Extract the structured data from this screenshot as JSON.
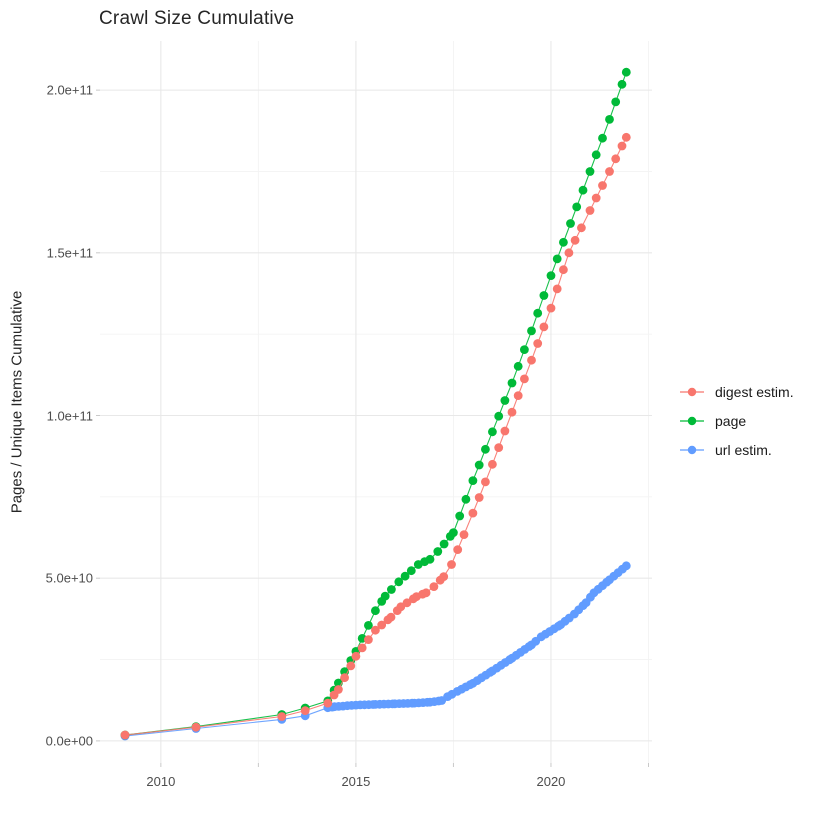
{
  "chart_data": {
    "type": "line",
    "title": "Crawl Size Cumulative",
    "xlabel": "",
    "ylabel": "Pages / Unique Items Cumulative",
    "legend_position": "right-middle",
    "grid": true,
    "background": "#ffffff",
    "grid_major_color": "#e8e8e8",
    "grid_minor_color": "#f3f3f3",
    "tick_color": "#c9c9c9",
    "tick_label_color": "#4d4d4d",
    "x_domain": [
      2008.44,
      2022.59
    ],
    "y_domain": [
      -6800000000,
      215100000000
    ],
    "x_ticks": [
      {
        "value": 2010,
        "label": "2010"
      },
      {
        "value": 2015,
        "label": "2015"
      },
      {
        "value": 2020,
        "label": "2020"
      }
    ],
    "x_minor_ticks": [
      2012.5,
      2017.5,
      2022.5
    ],
    "y_ticks": [
      {
        "value": 0,
        "label": "0.0e+00"
      },
      {
        "value": 50000000000,
        "label": "5.0e+10"
      },
      {
        "value": 100000000000,
        "label": "1.0e+11"
      },
      {
        "value": 150000000000,
        "label": "1.5e+11"
      },
      {
        "value": 200000000000,
        "label": "2.0e+11"
      }
    ],
    "y_minor_ticks": [
      25000000000,
      75000000000,
      125000000000,
      175000000000
    ],
    "value_scale": 1000000000,
    "dense_from_year": 2014.27,
    "series": [
      {
        "name": "digest estim.",
        "color": "#F8766D",
        "dense_step": 0.16,
        "points": [
          [
            2009.08,
            1.8
          ],
          [
            2010.9,
            4.2
          ],
          [
            2013.1,
            7.5
          ],
          [
            2013.7,
            9.3
          ],
          [
            2014.28,
            11.6
          ],
          [
            2014.55,
            15.8
          ],
          [
            2015.0,
            26.0
          ],
          [
            2015.5,
            34.0
          ],
          [
            2015.9,
            38.0
          ],
          [
            2016.15,
            41.2
          ],
          [
            2016.55,
            44.3
          ],
          [
            2016.8,
            45.5
          ],
          [
            2017.0,
            47.4
          ],
          [
            2017.25,
            50.5
          ],
          [
            2017.45,
            54.2
          ],
          [
            2018.0,
            70.0
          ],
          [
            2018.5,
            85.0
          ],
          [
            2019.0,
            101.0
          ],
          [
            2019.5,
            117.0
          ],
          [
            2020.0,
            133.0
          ],
          [
            2020.46,
            150.0
          ],
          [
            2021.0,
            163.0
          ],
          [
            2021.5,
            175.0
          ],
          [
            2021.93,
            185.5
          ]
        ]
      },
      {
        "name": "page",
        "color": "#00BA38",
        "dense_step": 0.16,
        "points": [
          [
            2009.08,
            1.8
          ],
          [
            2010.9,
            4.4
          ],
          [
            2013.1,
            8.1
          ],
          [
            2013.7,
            10.1
          ],
          [
            2014.28,
            12.3
          ],
          [
            2014.55,
            17.8
          ],
          [
            2015.0,
            27.5
          ],
          [
            2015.5,
            40.0
          ],
          [
            2015.75,
            44.5
          ],
          [
            2016.1,
            48.9
          ],
          [
            2016.6,
            54.2
          ],
          [
            2016.9,
            55.8
          ],
          [
            2017.1,
            58.2
          ],
          [
            2017.5,
            64.0
          ],
          [
            2018.0,
            80.0
          ],
          [
            2018.5,
            95.0
          ],
          [
            2019.0,
            110.0
          ],
          [
            2019.5,
            126.0
          ],
          [
            2020.0,
            143.0
          ],
          [
            2020.5,
            159.0
          ],
          [
            2021.0,
            175.0
          ],
          [
            2021.5,
            191.0
          ],
          [
            2021.93,
            205.5
          ]
        ]
      },
      {
        "name": "url estim.",
        "color": "#619CFF",
        "dense_step": 0.11,
        "points": [
          [
            2009.08,
            1.5
          ],
          [
            2010.9,
            3.8
          ],
          [
            2013.1,
            6.6
          ],
          [
            2013.7,
            7.7
          ],
          [
            2014.28,
            10.2
          ],
          [
            2014.45,
            10.5
          ],
          [
            2015.0,
            11.0
          ],
          [
            2015.5,
            11.2
          ],
          [
            2016.0,
            11.4
          ],
          [
            2016.5,
            11.6
          ],
          [
            2016.9,
            11.9
          ],
          [
            2017.2,
            12.4
          ],
          [
            2017.35,
            13.6
          ],
          [
            2017.6,
            15.2
          ],
          [
            2018.0,
            17.7
          ],
          [
            2018.5,
            21.5
          ],
          [
            2019.0,
            25.4
          ],
          [
            2019.5,
            29.5
          ],
          [
            2019.75,
            32.0
          ],
          [
            2020.25,
            35.7
          ],
          [
            2020.6,
            39.0
          ],
          [
            2020.9,
            42.5
          ],
          [
            2021.1,
            45.5
          ],
          [
            2021.5,
            49.5
          ],
          [
            2021.93,
            53.8
          ]
        ]
      }
    ]
  }
}
